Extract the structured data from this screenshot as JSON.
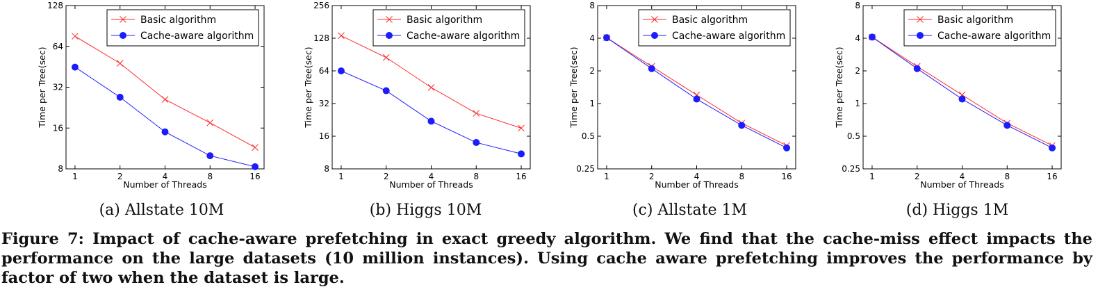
{
  "series_names": [
    "Basic algorithm",
    "Cache-aware algorithm"
  ],
  "chart_data": [
    {
      "type": "line",
      "xlabel": "Number of Threads",
      "ylabel": "Time per Tree(sec)",
      "x": [
        1,
        2,
        4,
        8,
        16
      ],
      "y_scale": "log2",
      "ylim": [
        8,
        128
      ],
      "yticks": [
        8,
        16,
        32,
        64,
        128
      ],
      "series": [
        {
          "name": "Basic algorithm",
          "color": "#ff2a2a",
          "marker": "x",
          "values": [
            76,
            48,
            26,
            17.5,
            11.5
          ]
        },
        {
          "name": "Cache-aware algorithm",
          "color": "#1c1cff",
          "marker": "o",
          "values": [
            45,
            27,
            15,
            10,
            8.3
          ]
        }
      ],
      "legend": "top-right",
      "grid": false
    },
    {
      "type": "line",
      "xlabel": "Number of Threads",
      "ylabel": "Time per Tree(sec)",
      "x": [
        1,
        2,
        4,
        8,
        16
      ],
      "y_scale": "log2",
      "ylim": [
        8,
        256
      ],
      "yticks": [
        8,
        16,
        32,
        64,
        128,
        256
      ],
      "series": [
        {
          "name": "Basic algorithm",
          "color": "#ff2a2a",
          "marker": "x",
          "values": [
            135,
            85,
            45,
            26,
            19
          ]
        },
        {
          "name": "Cache-aware algorithm",
          "color": "#1c1cff",
          "marker": "o",
          "values": [
            64,
            42,
            22,
            14,
            11
          ]
        }
      ],
      "legend": "top-right",
      "grid": false
    },
    {
      "type": "line",
      "xlabel": "Number of Threads",
      "ylabel": "Time per Tree(sec)",
      "x": [
        1,
        2,
        4,
        8,
        16
      ],
      "y_scale": "log2",
      "ylim": [
        0.25,
        8
      ],
      "yticks": [
        0.25,
        0.5,
        1,
        2,
        4,
        8
      ],
      "series": [
        {
          "name": "Basic algorithm",
          "color": "#ff2a2a",
          "marker": "x",
          "values": [
            4.05,
            2.2,
            1.2,
            0.66,
            0.41
          ]
        },
        {
          "name": "Cache-aware algorithm",
          "color": "#1c1cff",
          "marker": "o",
          "values": [
            4.05,
            2.1,
            1.1,
            0.63,
            0.39
          ]
        }
      ],
      "legend": "top-right",
      "grid": false
    },
    {
      "type": "line",
      "xlabel": "Number of Threads",
      "ylabel": "Time per Tree(sec)",
      "x": [
        1,
        2,
        4,
        8,
        16
      ],
      "y_scale": "log2",
      "ylim": [
        0.25,
        8
      ],
      "yticks": [
        0.25,
        0.5,
        1,
        2,
        4,
        8
      ],
      "series": [
        {
          "name": "Basic algorithm",
          "color": "#ff2a2a",
          "marker": "x",
          "values": [
            4.1,
            2.2,
            1.2,
            0.66,
            0.41
          ]
        },
        {
          "name": "Cache-aware algorithm",
          "color": "#1c1cff",
          "marker": "o",
          "values": [
            4.1,
            2.1,
            1.1,
            0.63,
            0.39
          ]
        }
      ],
      "legend": "top-right",
      "grid": false
    }
  ],
  "subcaptions": [
    "(a) Allstate 10M",
    "(b) Higgs 10M",
    "(c) Allstate 1M",
    "(d) Higgs 1M"
  ],
  "figure_caption": "Figure 7: Impact of cache-aware prefetching in exact greedy algorithm. We find that the cache-miss effect impacts the performance on the large datasets (10 million instances). Using cache aware prefetching improves the performance by factor of two when the dataset is large."
}
